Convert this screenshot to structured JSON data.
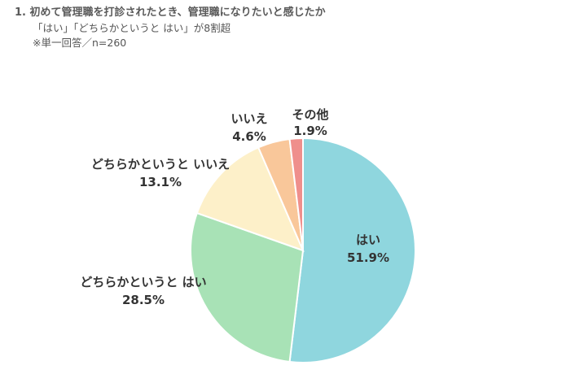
{
  "header": {
    "title": "1. 初めて管理職を打診されたとき、管理職になりたいと感じたか",
    "subtitle": "「はい」「どちらかというと はい」が8割超",
    "note": "※単一回答／n=260"
  },
  "chart_data": {
    "type": "pie",
    "start_angle": "12 o'clock",
    "direction": "clockwise",
    "slices": [
      {
        "label": "はい",
        "value": 51.9,
        "display": "51.9%",
        "color": "#8fd6de"
      },
      {
        "label": "どちらかというと はい",
        "value": 28.5,
        "display": "28.5%",
        "color": "#a8e2b6"
      },
      {
        "label": "どちらかというと いいえ",
        "value": 13.1,
        "display": "13.1%",
        "color": "#fdf0c9"
      },
      {
        "label": "いいえ",
        "value": 4.6,
        "display": "4.6%",
        "color": "#f9c79a"
      },
      {
        "label": "その他",
        "value": 1.9,
        "display": "1.9%",
        "color": "#ef8f8c"
      }
    ]
  }
}
